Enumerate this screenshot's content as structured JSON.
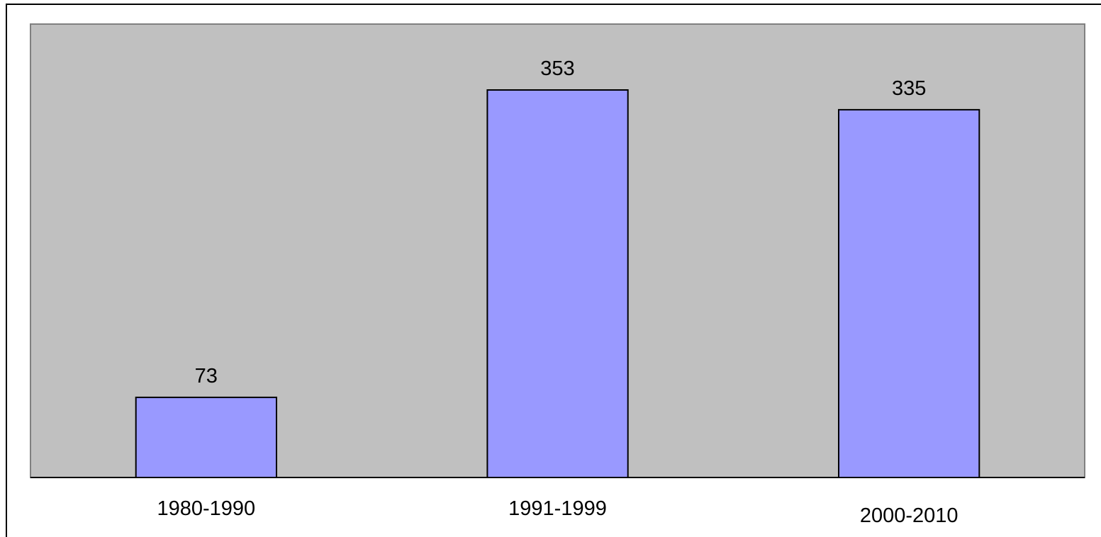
{
  "chart_data": {
    "type": "bar",
    "categories": [
      "1980-1990",
      "1991-1999",
      "2000-2010"
    ],
    "values": [
      73,
      353,
      335
    ],
    "data_labels": [
      "73",
      "353",
      "335"
    ],
    "title": "",
    "xlabel": "",
    "ylabel": "",
    "ylim": [
      0,
      413
    ],
    "grid": false,
    "legend": "none",
    "colors": {
      "plot_background": "#C0C0C0",
      "bar_fill": "#9999FF",
      "bar_stroke": "#000000",
      "axis": "#000000"
    }
  }
}
